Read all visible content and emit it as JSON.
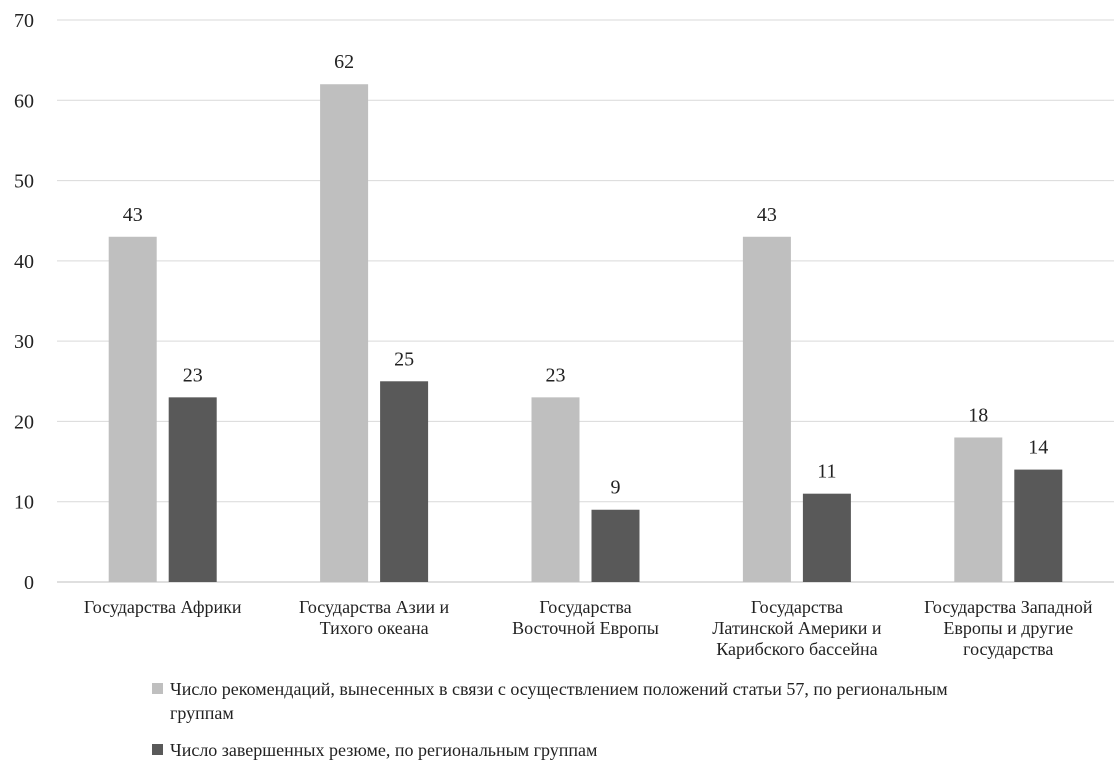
{
  "colors": {
    "series1": "#bfbfbf",
    "series2": "#595959",
    "grid": "#d9d9d9",
    "axis": "#bfbfbf"
  },
  "chart_data": {
    "type": "bar",
    "title": "",
    "xlabel": "",
    "ylabel": "",
    "ylim": [
      0,
      70
    ],
    "yticks": [
      "0",
      "10",
      "20",
      "30",
      "40",
      "50",
      "60",
      "70"
    ],
    "grid": true,
    "legend_position": "bottom",
    "categories": [
      [
        "Государства Африки"
      ],
      [
        "Государства Азии и",
        "Тихого океана"
      ],
      [
        "Государства",
        "Восточной Европы"
      ],
      [
        "Государства",
        "Латинской Америки и",
        "Карибского бассейна"
      ],
      [
        "Государства Западной",
        "Европы и другие",
        "государства"
      ]
    ],
    "series": [
      {
        "name": "Число рекомендаций, вынесенных в связи с осуществлением положений статьи 57, по региональным группам",
        "values": [
          43,
          62,
          23,
          43,
          18
        ]
      },
      {
        "name": "Число завершенных резюме, по региональным группам",
        "values": [
          23,
          25,
          9,
          11,
          14
        ]
      }
    ]
  }
}
